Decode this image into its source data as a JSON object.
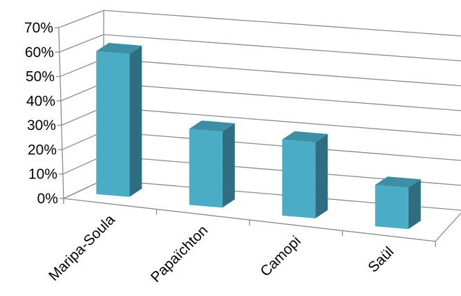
{
  "chart_data": {
    "type": "bar",
    "style": "3d-perspective",
    "categories": [
      "Maripa-Soula",
      "Papaïchton",
      "Camopi",
      "Saül"
    ],
    "values": [
      0.62,
      0.33,
      0.33,
      0.18
    ],
    "ylim": [
      0,
      0.7
    ],
    "yticks": [
      "0%",
      "10%",
      "20%",
      "30%",
      "40%",
      "50%",
      "60%",
      "70%"
    ],
    "grid": true,
    "legend": "none",
    "title": "",
    "xlabel": "",
    "ylabel": "",
    "colors": {
      "bar_front": "#4BACC6",
      "bar_top": "#3D8FA6",
      "bar_side": "#2F6E80",
      "grid": "#8A8A8A"
    }
  }
}
